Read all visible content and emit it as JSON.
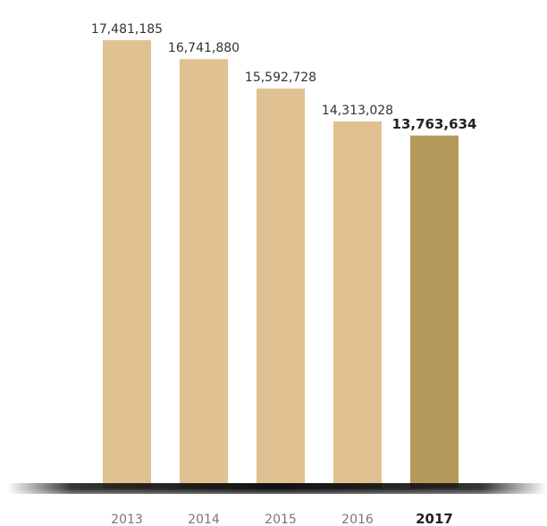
{
  "chart_data": {
    "type": "bar",
    "categories": [
      "2013",
      "2014",
      "2015",
      "2016",
      "2017"
    ],
    "values": [
      17481185,
      16741880,
      15592728,
      14313028,
      13763634
    ],
    "value_labels": [
      "17,481,185",
      "16,741,880",
      "15,592,728",
      "14,313,028",
      "13,763,634"
    ],
    "highlight_index": 4,
    "ylim": [
      0,
      17481185
    ],
    "colors": {
      "bar": "#e0c191",
      "bar_highlight": "#b49a5a",
      "baseline": "#111111"
    }
  }
}
